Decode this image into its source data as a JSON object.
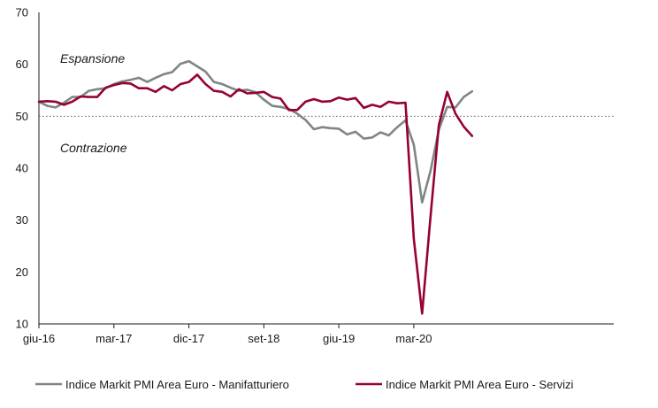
{
  "chart_data": {
    "type": "line",
    "title": "",
    "xlabel": "",
    "ylabel": "",
    "ylim": [
      10,
      70
    ],
    "yticks": [
      "10",
      "20",
      "30",
      "40",
      "50",
      "60",
      "70"
    ],
    "x_start": "giu-16",
    "xtick_labels": [
      "giu-16",
      "mar-17",
      "dic-17",
      "set-18",
      "giu-19",
      "mar-20"
    ],
    "reference_line": 50,
    "annotations": [
      "Espansione",
      "Contrazione"
    ],
    "legend_position": "bottom",
    "grid": false,
    "series": [
      {
        "name": "Indice Markit PMI Area Euro - Manifatturiero",
        "color": "#7f8686",
        "values": [
          52.8,
          52.0,
          51.7,
          52.6,
          53.7,
          53.7,
          54.9,
          55.2,
          55.4,
          56.2,
          56.7,
          57.0,
          57.4,
          56.6,
          57.4,
          58.1,
          58.5,
          60.1,
          60.6,
          59.6,
          58.6,
          56.6,
          56.2,
          55.5,
          54.9,
          55.1,
          54.6,
          53.2,
          52.0,
          51.8,
          51.4,
          50.5,
          49.3,
          47.5,
          47.9,
          47.7,
          47.6,
          46.5,
          47.0,
          45.7,
          45.9,
          46.9,
          46.3,
          47.9,
          49.2,
          44.5,
          33.4,
          39.4,
          47.4,
          51.8,
          51.7,
          53.7,
          54.8
        ]
      },
      {
        "name": "Indice Markit PMI Area Euro - Servizi",
        "color": "#960036",
        "values": [
          52.8,
          52.9,
          52.8,
          52.2,
          52.8,
          53.8,
          53.7,
          53.7,
          55.5,
          56.0,
          56.4,
          56.3,
          55.4,
          55.4,
          54.7,
          55.8,
          55.0,
          56.2,
          56.6,
          58.0,
          56.2,
          54.9,
          54.7,
          53.8,
          55.2,
          54.4,
          54.5,
          54.7,
          53.7,
          53.4,
          51.2,
          51.2,
          52.8,
          53.3,
          52.8,
          52.9,
          53.6,
          53.2,
          53.5,
          51.6,
          52.2,
          51.8,
          52.8,
          52.5,
          52.6,
          26.4,
          12.0,
          30.5,
          48.3,
          54.7,
          50.5,
          48.0,
          46.2
        ]
      }
    ]
  }
}
